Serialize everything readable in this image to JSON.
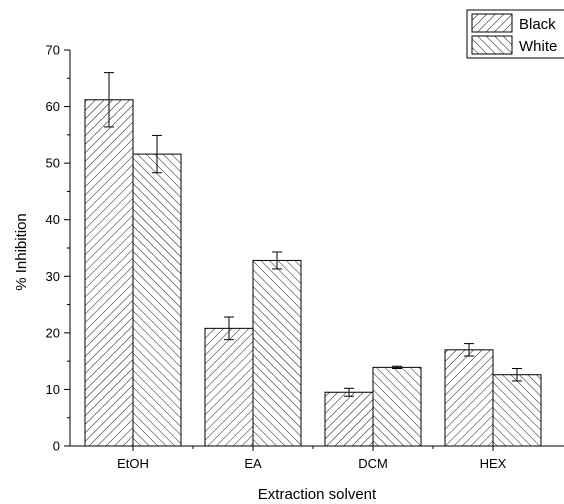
{
  "chart_data": {
    "type": "bar",
    "xlabel": "Extraction solvent",
    "ylabel": "% Inhibition",
    "ylim": [
      0,
      70
    ],
    "yticks": [
      0,
      10,
      20,
      30,
      40,
      50,
      60,
      70
    ],
    "categories": [
      "EtOH",
      "EA",
      "DCM",
      "HEX"
    ],
    "series": [
      {
        "name": "Black",
        "values": [
          61.2,
          20.8,
          9.5,
          17.0
        ],
        "errors": [
          4.8,
          2.0,
          0.7,
          1.1
        ],
        "hatch": "forward-diagonal"
      },
      {
        "name": "White",
        "values": [
          51.6,
          32.8,
          13.9,
          12.6
        ],
        "errors": [
          3.3,
          1.5,
          0.2,
          1.1
        ],
        "hatch": "backward-diagonal"
      }
    ],
    "legend": {
      "placement": "top-right"
    }
  }
}
